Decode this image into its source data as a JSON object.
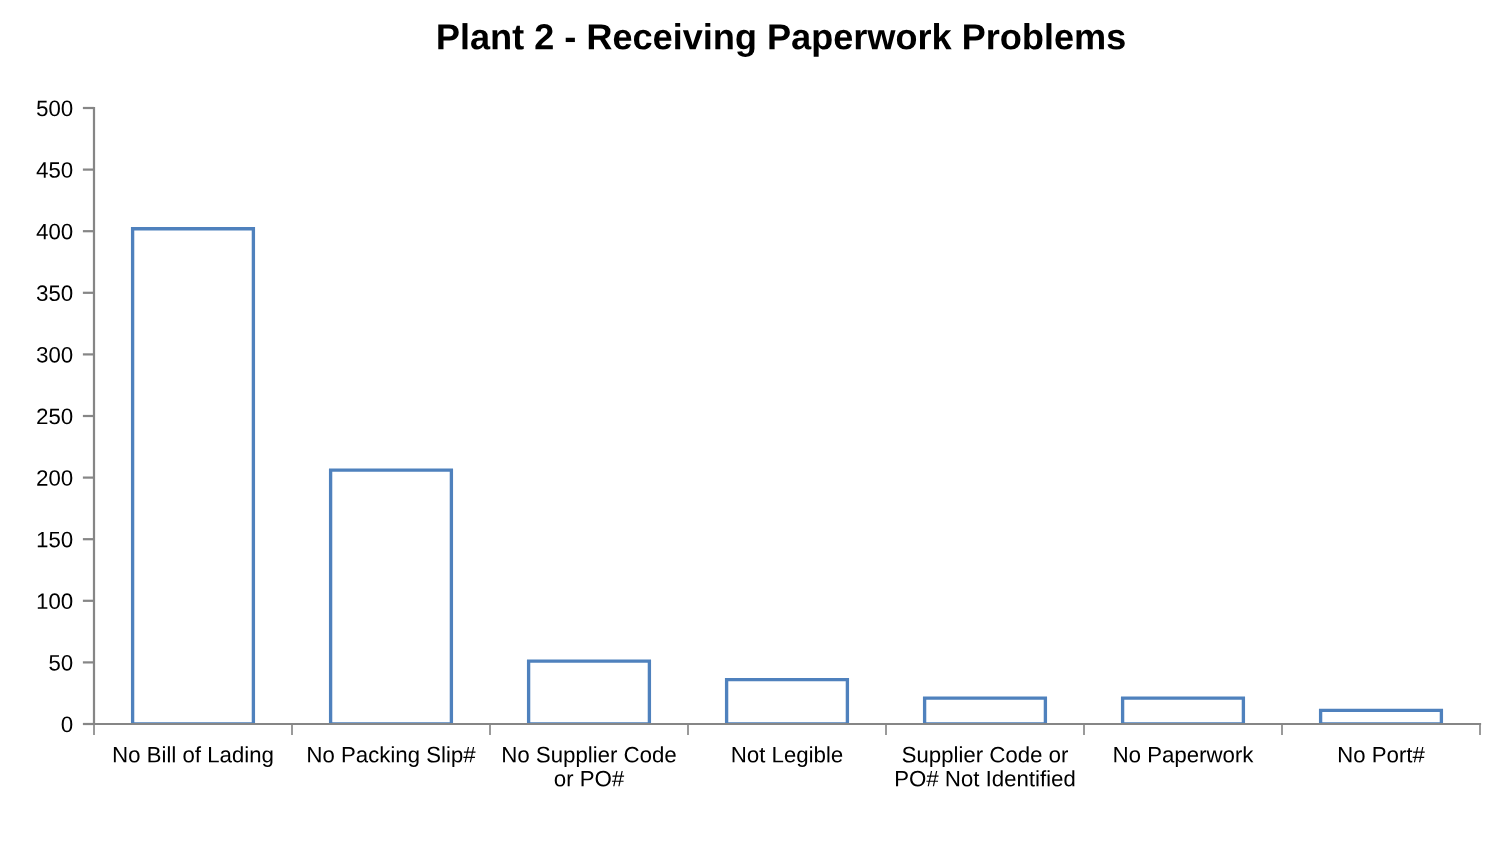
{
  "chart_data": {
    "type": "bar",
    "title": "Plant 2 - Receiving Paperwork Problems",
    "categories": [
      "No Bill of Lading",
      "No Packing Slip#",
      "No Supplier Code or PO#",
      "Not Legible",
      "Supplier Code or PO# Not Identified",
      "No Paperwork",
      "No Port#"
    ],
    "values": [
      402,
      206,
      51,
      36,
      21,
      21,
      11
    ],
    "color": "#4f81bd",
    "ylim": [
      0,
      500
    ],
    "yticks": [
      0,
      50,
      100,
      150,
      200,
      250,
      300,
      350,
      400,
      450,
      500
    ],
    "grid": false
  }
}
